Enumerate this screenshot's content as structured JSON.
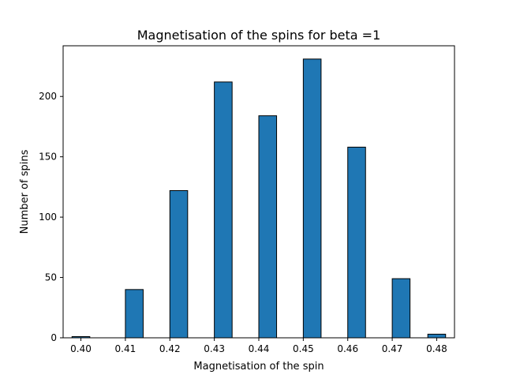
{
  "chart_data": {
    "type": "bar",
    "title": "Magnetisation of the spins for beta =1",
    "xlabel": "Magnetisation of the spin",
    "ylabel": "Number of spins",
    "xlim": [
      0.396,
      0.484
    ],
    "ylim": [
      0,
      242
    ],
    "x_ticks": [
      "0.40",
      "0.41",
      "0.42",
      "0.43",
      "0.44",
      "0.45",
      "0.46",
      "0.47",
      "0.48"
    ],
    "y_ticks": [
      "0",
      "50",
      "100",
      "150",
      "200"
    ],
    "bar_color": "#1f77b4",
    "edge_color": "#000000",
    "bars": [
      {
        "x": 0.4,
        "width": 0.004,
        "value": 1
      },
      {
        "x": 0.412,
        "width": 0.004,
        "value": 40
      },
      {
        "x": 0.422,
        "width": 0.004,
        "value": 122
      },
      {
        "x": 0.432,
        "width": 0.004,
        "value": 212
      },
      {
        "x": 0.442,
        "width": 0.004,
        "value": 184
      },
      {
        "x": 0.452,
        "width": 0.004,
        "value": 231
      },
      {
        "x": 0.462,
        "width": 0.004,
        "value": 158
      },
      {
        "x": 0.472,
        "width": 0.004,
        "value": 49
      },
      {
        "x": 0.48,
        "width": 0.004,
        "value": 3
      }
    ],
    "grid": false,
    "legend": "none"
  }
}
